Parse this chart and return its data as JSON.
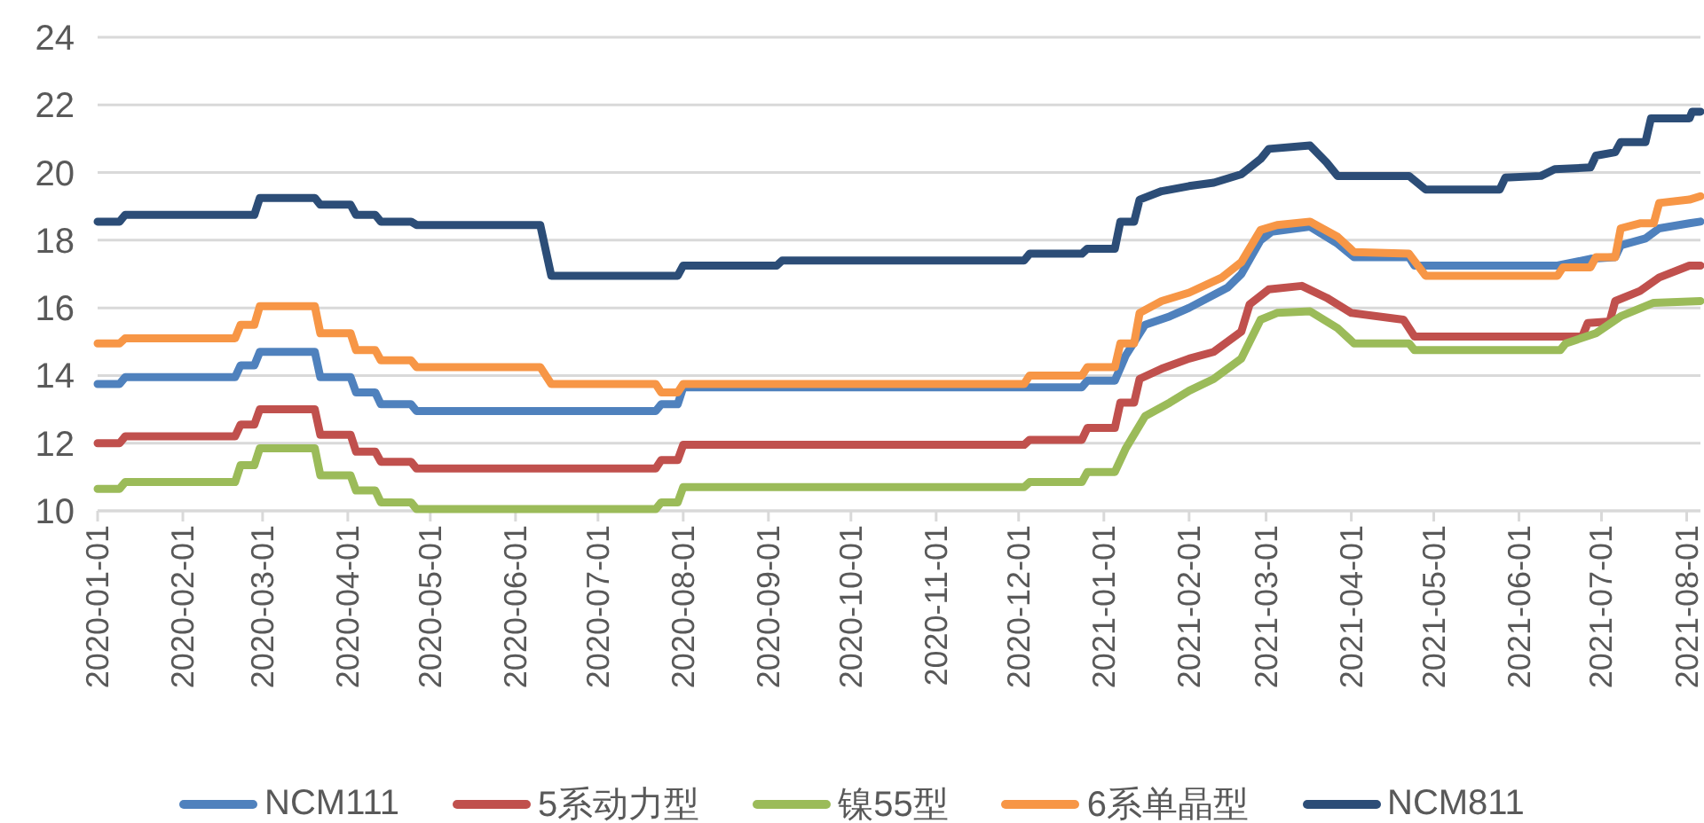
{
  "chart_data": {
    "type": "line",
    "series": [
      {
        "name": "NCM111",
        "color": "#4f81bd",
        "x": [
          "2020-01-01",
          "2020-01-09",
          "2020-01-11",
          "2020-02-20",
          "2020-02-22",
          "2020-02-27",
          "2020-02-29",
          "2020-03-20",
          "2020-03-22",
          "2020-04-02",
          "2020-04-04",
          "2020-04-11",
          "2020-04-13",
          "2020-04-24",
          "2020-04-26",
          "2020-07-22",
          "2020-07-24",
          "2020-07-30",
          "2020-08-01",
          "2020-12-24",
          "2020-12-26",
          "2021-01-05",
          "2021-01-09",
          "2021-01-16",
          "2021-01-25",
          "2021-02-01",
          "2021-02-15",
          "2021-02-20",
          "2021-02-27",
          "2021-03-03",
          "2021-03-17",
          "2021-03-27",
          "2021-04-02",
          "2021-04-22",
          "2021-04-24",
          "2021-06-15",
          "2021-06-27",
          "2021-07-06",
          "2021-07-08",
          "2021-07-17",
          "2021-07-22",
          "2021-08-02",
          "2021-08-06"
        ],
        "values": [
          13.75,
          13.75,
          13.95,
          13.95,
          14.3,
          14.3,
          14.7,
          14.7,
          13.95,
          13.95,
          13.5,
          13.5,
          13.15,
          13.15,
          12.95,
          12.95,
          13.15,
          13.15,
          13.65,
          13.65,
          13.85,
          13.85,
          14.6,
          15.5,
          15.75,
          16.0,
          16.6,
          17.0,
          18.0,
          18.25,
          18.4,
          17.9,
          17.5,
          17.5,
          17.25,
          17.25,
          17.45,
          17.5,
          17.85,
          18.05,
          18.35,
          18.5,
          18.55
        ]
      },
      {
        "name": "5系动力型",
        "color": "#c0504d",
        "x": [
          "2020-01-01",
          "2020-01-09",
          "2020-01-11",
          "2020-02-20",
          "2020-02-22",
          "2020-02-27",
          "2020-02-29",
          "2020-03-20",
          "2020-03-22",
          "2020-04-02",
          "2020-04-04",
          "2020-04-11",
          "2020-04-13",
          "2020-04-24",
          "2020-04-26",
          "2020-07-22",
          "2020-07-24",
          "2020-07-30",
          "2020-08-01",
          "2020-12-03",
          "2020-12-05",
          "2020-12-24",
          "2020-12-26",
          "2021-01-05",
          "2021-01-07",
          "2021-01-12",
          "2021-01-14",
          "2021-01-22",
          "2021-02-01",
          "2021-02-10",
          "2021-02-20",
          "2021-02-23",
          "2021-03-02",
          "2021-03-14",
          "2021-03-23",
          "2021-04-01",
          "2021-04-20",
          "2021-04-24",
          "2021-06-24",
          "2021-06-26",
          "2021-07-04",
          "2021-07-06",
          "2021-07-15",
          "2021-07-22",
          "2021-08-02",
          "2021-08-06"
        ],
        "values": [
          12.0,
          12.0,
          12.2,
          12.2,
          12.55,
          12.55,
          13.0,
          13.0,
          12.25,
          12.25,
          11.75,
          11.75,
          11.45,
          11.45,
          11.25,
          11.25,
          11.5,
          11.5,
          11.95,
          11.95,
          12.1,
          12.1,
          12.45,
          12.45,
          13.2,
          13.2,
          13.9,
          14.2,
          14.5,
          14.7,
          15.3,
          16.1,
          16.55,
          16.65,
          16.3,
          15.85,
          15.65,
          15.15,
          15.15,
          15.55,
          15.6,
          16.2,
          16.5,
          16.9,
          17.25,
          17.25
        ]
      },
      {
        "name": "镍55型",
        "color": "#9bbb59",
        "x": [
          "2020-01-01",
          "2020-01-09",
          "2020-01-11",
          "2020-02-20",
          "2020-02-22",
          "2020-02-27",
          "2020-02-29",
          "2020-03-20",
          "2020-03-22",
          "2020-04-02",
          "2020-04-04",
          "2020-04-11",
          "2020-04-13",
          "2020-04-24",
          "2020-04-26",
          "2020-07-22",
          "2020-07-24",
          "2020-07-30",
          "2020-08-01",
          "2020-12-03",
          "2020-12-05",
          "2020-12-24",
          "2020-12-26",
          "2021-01-05",
          "2021-01-09",
          "2021-01-16",
          "2021-01-25",
          "2021-02-01",
          "2021-02-10",
          "2021-02-20",
          "2021-02-27",
          "2021-03-05",
          "2021-03-17",
          "2021-03-27",
          "2021-04-02",
          "2021-04-22",
          "2021-04-24",
          "2021-06-16",
          "2021-06-18",
          "2021-06-29",
          "2021-07-08",
          "2021-07-20",
          "2021-08-06"
        ],
        "values": [
          10.65,
          10.65,
          10.85,
          10.85,
          11.35,
          11.35,
          11.85,
          11.85,
          11.05,
          11.05,
          10.6,
          10.6,
          10.25,
          10.25,
          10.05,
          10.05,
          10.25,
          10.25,
          10.7,
          10.7,
          10.85,
          10.85,
          11.15,
          11.15,
          11.85,
          12.8,
          13.2,
          13.55,
          13.9,
          14.5,
          15.65,
          15.85,
          15.9,
          15.4,
          14.95,
          14.95,
          14.75,
          14.75,
          14.95,
          15.25,
          15.75,
          16.15,
          16.2
        ]
      },
      {
        "name": "6系单晶型",
        "color": "#f79646",
        "x": [
          "2020-01-01",
          "2020-01-09",
          "2020-01-11",
          "2020-02-20",
          "2020-02-22",
          "2020-02-27",
          "2020-02-29",
          "2020-03-20",
          "2020-03-22",
          "2020-04-02",
          "2020-04-04",
          "2020-04-11",
          "2020-04-13",
          "2020-04-24",
          "2020-04-26",
          "2020-06-10",
          "2020-06-14",
          "2020-07-22",
          "2020-07-24",
          "2020-07-30",
          "2020-08-01",
          "2020-12-03",
          "2020-12-05",
          "2020-12-24",
          "2020-12-26",
          "2021-01-05",
          "2021-01-07",
          "2021-01-12",
          "2021-01-14",
          "2021-01-22",
          "2021-02-01",
          "2021-02-13",
          "2021-02-20",
          "2021-02-27",
          "2021-03-05",
          "2021-03-17",
          "2021-03-27",
          "2021-04-02",
          "2021-04-22",
          "2021-04-28",
          "2021-06-15",
          "2021-06-17",
          "2021-06-27",
          "2021-06-29",
          "2021-07-06",
          "2021-07-08",
          "2021-07-15",
          "2021-07-20",
          "2021-07-22",
          "2021-08-02",
          "2021-08-06"
        ],
        "values": [
          14.95,
          14.95,
          15.1,
          15.1,
          15.5,
          15.5,
          16.05,
          16.05,
          15.25,
          15.25,
          14.75,
          14.75,
          14.45,
          14.45,
          14.25,
          14.25,
          13.75,
          13.75,
          13.5,
          13.5,
          13.75,
          13.75,
          14.0,
          14.0,
          14.25,
          14.25,
          14.95,
          14.95,
          15.85,
          16.2,
          16.45,
          16.9,
          17.35,
          18.3,
          18.45,
          18.55,
          18.1,
          17.65,
          17.6,
          16.95,
          16.95,
          17.2,
          17.2,
          17.5,
          17.5,
          18.35,
          18.5,
          18.5,
          19.1,
          19.2,
          19.3
        ]
      },
      {
        "name": "NCM811",
        "color": "#2c4d77",
        "x": [
          "2020-01-01",
          "2020-01-09",
          "2020-01-11",
          "2020-02-27",
          "2020-02-29",
          "2020-03-20",
          "2020-03-22",
          "2020-04-02",
          "2020-04-04",
          "2020-04-11",
          "2020-04-13",
          "2020-04-24",
          "2020-04-26",
          "2020-06-10",
          "2020-06-14",
          "2020-07-30",
          "2020-08-01",
          "2020-09-04",
          "2020-09-06",
          "2020-12-03",
          "2020-12-05",
          "2020-12-24",
          "2020-12-26",
          "2021-01-05",
          "2021-01-07",
          "2021-01-12",
          "2021-01-14",
          "2021-01-22",
          "2021-02-01",
          "2021-02-10",
          "2021-02-20",
          "2021-02-27",
          "2021-03-02",
          "2021-03-17",
          "2021-03-23",
          "2021-03-27",
          "2021-04-22",
          "2021-04-28",
          "2021-05-25",
          "2021-05-27",
          "2021-06-09",
          "2021-06-14",
          "2021-06-27",
          "2021-06-29",
          "2021-07-06",
          "2021-07-08",
          "2021-07-17",
          "2021-07-19",
          "2021-08-02",
          "2021-08-03",
          "2021-08-06"
        ],
        "values": [
          18.55,
          18.55,
          18.75,
          18.75,
          19.25,
          19.25,
          19.05,
          19.05,
          18.75,
          18.75,
          18.55,
          18.55,
          18.45,
          18.45,
          16.95,
          16.95,
          17.25,
          17.25,
          17.4,
          17.4,
          17.6,
          17.6,
          17.75,
          17.75,
          18.55,
          18.55,
          19.2,
          19.45,
          19.6,
          19.7,
          19.95,
          20.4,
          20.7,
          20.8,
          20.3,
          19.9,
          19.9,
          19.5,
          19.5,
          19.85,
          19.9,
          20.1,
          20.15,
          20.5,
          20.6,
          20.9,
          20.9,
          21.6,
          21.6,
          21.8,
          21.8
        ]
      }
    ],
    "xlim": [
      "2020-01-01",
      "2021-08-06"
    ],
    "xticks": [
      "2020-01-01",
      "2020-02-01",
      "2020-03-01",
      "2020-04-01",
      "2020-05-01",
      "2020-06-01",
      "2020-07-01",
      "2020-08-01",
      "2020-09-01",
      "2020-10-01",
      "2020-11-01",
      "2020-12-01",
      "2021-01-01",
      "2021-02-01",
      "2021-03-01",
      "2021-04-01",
      "2021-05-01",
      "2021-06-01",
      "2021-07-01",
      "2021-08-01"
    ],
    "ylim": [
      10,
      24
    ],
    "yticks": [
      10,
      12,
      14,
      16,
      18,
      20,
      22,
      24
    ],
    "grid": "y",
    "legend": "bottom",
    "marker": "none",
    "line_style": "solid"
  }
}
